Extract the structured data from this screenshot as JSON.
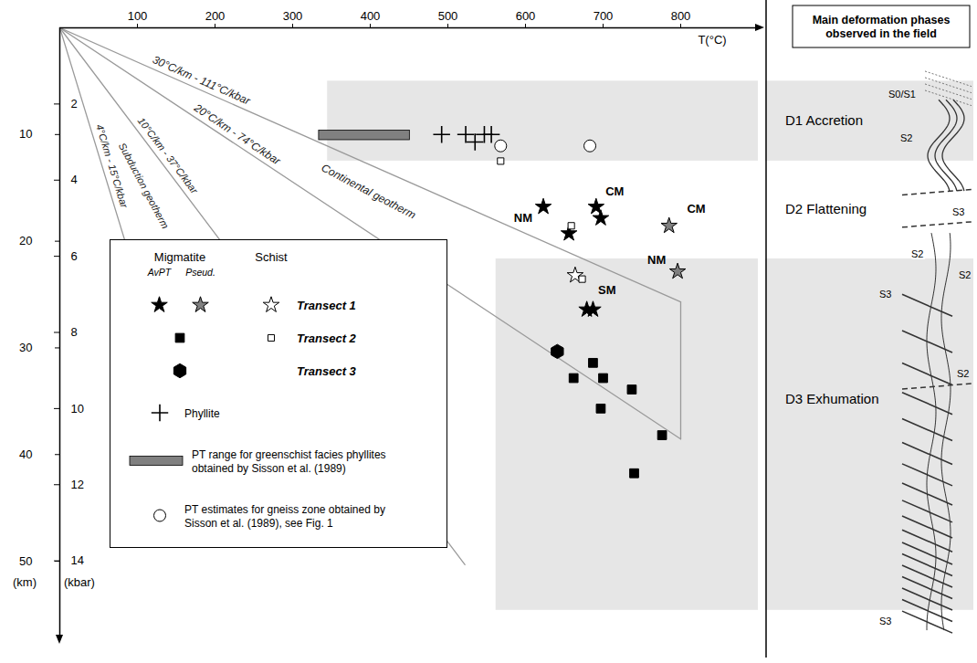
{
  "chart_data": {
    "type": "scatter",
    "x_label": "T(°C)",
    "y_label": "(kbar)",
    "y2_label": "(km)",
    "xlim": [
      0,
      900
    ],
    "xticks": [
      100,
      200,
      300,
      400,
      500,
      600,
      700,
      800
    ],
    "ylim": [
      0,
      16
    ],
    "yticks": [
      2,
      4,
      6,
      8,
      10,
      12,
      14
    ],
    "y2lim": [
      0,
      57.1
    ],
    "y2ticks": [
      10,
      20,
      30,
      40,
      50
    ],
    "legend": "bottom-left",
    "geotherms": [
      {
        "label": "30°C/km - 111°C/kbar",
        "gradient": 111,
        "end": [
          800,
          7.2
        ]
      },
      {
        "label": "20°C/km - 74°C/kbar",
        "gradient": 74,
        "end": [
          800,
          10.8
        ]
      },
      {
        "label": "10°C/km - 37°C/kbar",
        "gradient": 37,
        "end": [
          522,
          14.1
        ]
      },
      {
        "label": "4°C/km - 15°C/kbar",
        "gradient": 15,
        "end": [
          204,
          13.6
        ]
      }
    ],
    "regions": [
      {
        "label": "Continental geotherm",
        "between": [
          111,
          74
        ]
      },
      {
        "label": "Subduction geotherm",
        "between": [
          37,
          15
        ]
      }
    ],
    "series": [
      {
        "name": "Transect 1",
        "group": "Migmatite",
        "method": "AvPT",
        "marker": "star",
        "color": "#000000",
        "x": [
          623,
          691,
          697,
          656,
          679,
          687
        ],
        "y": [
          4.7,
          4.7,
          5.0,
          5.4,
          7.4,
          7.4
        ]
      },
      {
        "name": "Transect 1",
        "group": "Migmatite",
        "method": "Pseud.",
        "marker": "star",
        "color": "#808080",
        "x": [
          785,
          796
        ],
        "y": [
          5.2,
          6.4
        ]
      },
      {
        "name": "Transect 1",
        "group": "Schist",
        "marker": "star",
        "color": "#ffffff",
        "x": [
          664
        ],
        "y": [
          6.5
        ]
      },
      {
        "name": "Transect 2",
        "group": "Migmatite",
        "marker": "square",
        "color": "#000000",
        "x": [
          687,
          700,
          662,
          737,
          697,
          776,
          740
        ],
        "y": [
          8.8,
          9.2,
          9.2,
          9.5,
          10.0,
          10.7,
          11.7
        ]
      },
      {
        "name": "Transect 2",
        "group": "Schist",
        "marker": "square",
        "color": "#ffffff",
        "x": [
          568,
          659,
          673
        ],
        "y": [
          3.5,
          5.2,
          6.6
        ]
      },
      {
        "name": "Transect 3",
        "group": "Migmatite",
        "marker": "hexagon",
        "color": "#000000",
        "x": [
          641
        ],
        "y": [
          8.5
        ]
      },
      {
        "name": "Phyllite",
        "marker": "plus",
        "color": "#000000",
        "x": [
          492,
          523,
          535,
          547,
          556
        ],
        "y": [
          2.8,
          2.8,
          3.0,
          2.8,
          2.8
        ]
      },
      {
        "name": "PT range for greenschist facies phyllites obtained by Sisson et al. (1989)",
        "type": "range",
        "color": "#808080",
        "x": [
          334,
          451
        ],
        "y": [
          2.7,
          2.95
        ]
      },
      {
        "name": "PT estimates for gneiss zone obtained by Sisson et al. (1989), see Fig. 1",
        "marker": "circle",
        "color": "#ffffff",
        "x": [
          568,
          683
        ],
        "y": [
          3.1,
          3.1
        ]
      }
    ],
    "annotations": [
      {
        "text": "NM",
        "x": 597,
        "y": 5.0
      },
      {
        "text": "CM",
        "x": 715,
        "y": 4.3
      },
      {
        "text": "CM",
        "x": 820,
        "y": 4.75
      },
      {
        "text": "NM",
        "x": 769,
        "y": 6.1
      },
      {
        "text": "SM",
        "x": 705,
        "y": 6.9
      }
    ],
    "bands": [
      {
        "x_start": 345,
        "y": [
          1.4,
          3.5
        ]
      },
      {
        "x_start": 562,
        "y": [
          6.07,
          15.3
        ]
      }
    ],
    "panel": {
      "title": "Main deformation phases observed in the field",
      "phases": [
        "D1 Accretion",
        "D2 Flattening",
        "D3 Exhumation"
      ],
      "structure_labels": [
        "S0/S1",
        "S2",
        "S3",
        "S2",
        "S2",
        "S3",
        "S2",
        "S3"
      ]
    }
  }
}
